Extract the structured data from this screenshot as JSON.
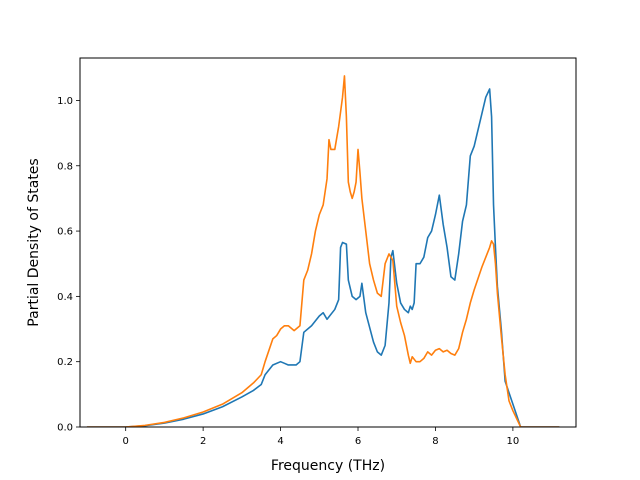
{
  "chart_data": {
    "type": "line",
    "title": "",
    "xlabel": "Frequency (THz)",
    "ylabel": "Partial Density of States",
    "xlim": [
      -1.18,
      11.63
    ],
    "ylim": [
      0.0,
      1.13
    ],
    "xticks": [
      0,
      2,
      4,
      6,
      8,
      10
    ],
    "xtick_labels": [
      "0",
      "2",
      "4",
      "6",
      "8",
      "10"
    ],
    "yticks": [
      0.0,
      0.2,
      0.4,
      0.6,
      0.8,
      1.0
    ],
    "ytick_labels": [
      "0.0",
      "0.2",
      "0.4",
      "0.6",
      "0.8",
      "1.0"
    ],
    "grid": false,
    "legend": "none",
    "series": [
      {
        "color": "#1f77b4",
        "x": [
          -1.0,
          0.0,
          0.5,
          1.0,
          1.5,
          2.0,
          2.5,
          3.0,
          3.3,
          3.5,
          3.6,
          3.8,
          4.0,
          4.1,
          4.2,
          4.4,
          4.5,
          4.6,
          4.8,
          5.0,
          5.1,
          5.2,
          5.4,
          5.5,
          5.55,
          5.6,
          5.7,
          5.75,
          5.85,
          5.95,
          6.05,
          6.1,
          6.2,
          6.4,
          6.5,
          6.6,
          6.7,
          6.8,
          6.85,
          6.9,
          7.0,
          7.1,
          7.2,
          7.3,
          7.35,
          7.4,
          7.45,
          7.5,
          7.6,
          7.7,
          7.8,
          7.9,
          8.0,
          8.1,
          8.2,
          8.3,
          8.4,
          8.5,
          8.6,
          8.7,
          8.8,
          8.9,
          9.0,
          9.1,
          9.2,
          9.3,
          9.4,
          9.45,
          9.5,
          9.55,
          9.6,
          9.7,
          9.8,
          10.0,
          10.2,
          11.2
        ],
        "y": [
          0.0,
          0.0,
          0.004,
          0.012,
          0.024,
          0.04,
          0.062,
          0.092,
          0.112,
          0.13,
          0.16,
          0.19,
          0.2,
          0.195,
          0.19,
          0.19,
          0.2,
          0.29,
          0.31,
          0.34,
          0.35,
          0.33,
          0.36,
          0.39,
          0.55,
          0.565,
          0.56,
          0.45,
          0.4,
          0.39,
          0.4,
          0.44,
          0.35,
          0.26,
          0.23,
          0.22,
          0.25,
          0.38,
          0.52,
          0.54,
          0.44,
          0.38,
          0.36,
          0.35,
          0.37,
          0.36,
          0.38,
          0.5,
          0.5,
          0.52,
          0.58,
          0.6,
          0.65,
          0.71,
          0.62,
          0.55,
          0.46,
          0.45,
          0.53,
          0.63,
          0.68,
          0.83,
          0.86,
          0.91,
          0.96,
          1.01,
          1.035,
          0.95,
          0.68,
          0.55,
          0.43,
          0.3,
          0.14,
          0.07,
          0.0,
          0.0
        ]
      },
      {
        "color": "#ff7f0e",
        "x": [
          -1.0,
          0.0,
          0.5,
          1.0,
          1.5,
          2.0,
          2.5,
          3.0,
          3.3,
          3.5,
          3.6,
          3.8,
          3.9,
          4.0,
          4.1,
          4.2,
          4.35,
          4.5,
          4.6,
          4.7,
          4.8,
          4.9,
          5.0,
          5.1,
          5.2,
          5.25,
          5.3,
          5.4,
          5.5,
          5.6,
          5.65,
          5.7,
          5.75,
          5.8,
          5.85,
          5.9,
          5.95,
          6.0,
          6.05,
          6.1,
          6.2,
          6.3,
          6.4,
          6.5,
          6.6,
          6.7,
          6.8,
          6.9,
          7.0,
          7.1,
          7.2,
          7.3,
          7.35,
          7.4,
          7.5,
          7.6,
          7.7,
          7.8,
          7.9,
          8.0,
          8.1,
          8.2,
          8.3,
          8.4,
          8.5,
          8.6,
          8.7,
          8.8,
          8.9,
          9.0,
          9.2,
          9.4,
          9.45,
          9.5,
          9.55,
          9.6,
          9.7,
          9.8,
          9.9,
          10.0,
          10.2,
          11.2
        ],
        "y": [
          0.0,
          0.0,
          0.005,
          0.014,
          0.028,
          0.046,
          0.07,
          0.105,
          0.135,
          0.16,
          0.2,
          0.27,
          0.28,
          0.3,
          0.31,
          0.31,
          0.295,
          0.31,
          0.45,
          0.48,
          0.53,
          0.6,
          0.65,
          0.68,
          0.76,
          0.88,
          0.85,
          0.85,
          0.92,
          1.01,
          1.075,
          0.95,
          0.75,
          0.72,
          0.7,
          0.72,
          0.75,
          0.85,
          0.78,
          0.7,
          0.6,
          0.5,
          0.45,
          0.41,
          0.4,
          0.5,
          0.53,
          0.51,
          0.37,
          0.32,
          0.28,
          0.22,
          0.195,
          0.215,
          0.2,
          0.2,
          0.21,
          0.23,
          0.22,
          0.235,
          0.24,
          0.23,
          0.235,
          0.225,
          0.22,
          0.24,
          0.29,
          0.33,
          0.38,
          0.42,
          0.49,
          0.55,
          0.57,
          0.56,
          0.5,
          0.41,
          0.28,
          0.16,
          0.08,
          0.05,
          0.0,
          0.0
        ]
      }
    ]
  }
}
